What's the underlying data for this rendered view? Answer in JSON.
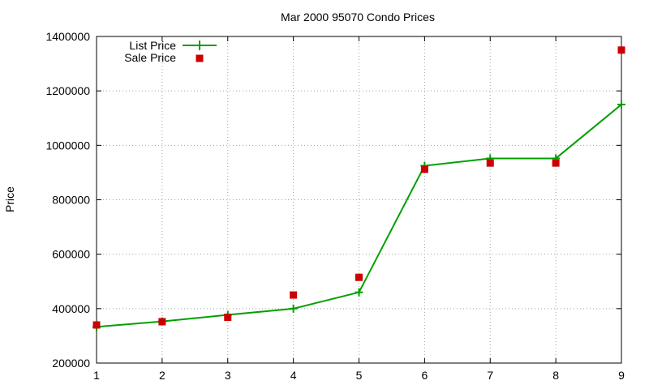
{
  "chart_data": {
    "type": "line",
    "title": "Mar 2000 95070 Condo Prices",
    "xlabel": "",
    "ylabel": "Price",
    "x": [
      1,
      2,
      3,
      4,
      5,
      6,
      7,
      8,
      9
    ],
    "xlim": [
      1,
      9
    ],
    "ylim": [
      200000,
      1400000
    ],
    "xticks": [
      "1",
      "2",
      "3",
      "4",
      "5",
      "6",
      "7",
      "8",
      "9"
    ],
    "yticks": [
      "200000",
      "400000",
      "600000",
      "800000",
      "1000000",
      "1200000",
      "1400000"
    ],
    "grid": true,
    "legend_position": "top-left",
    "series": [
      {
        "name": "List Price",
        "style": "linespoints",
        "marker": "plus",
        "color": "#00a000",
        "values": [
          333000,
          353000,
          377000,
          400000,
          460000,
          925000,
          952000,
          952000,
          1150000
        ]
      },
      {
        "name": "Sale Price",
        "style": "points",
        "marker": "square",
        "color": "#cc0000",
        "values": [
          340000,
          352000,
          368000,
          450000,
          515000,
          912000,
          935000,
          935000,
          1350000
        ]
      }
    ]
  }
}
